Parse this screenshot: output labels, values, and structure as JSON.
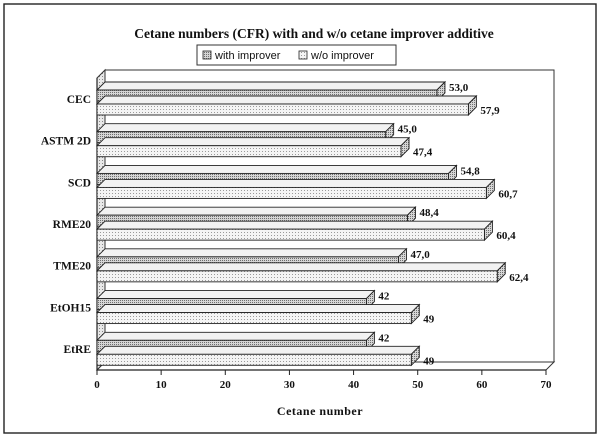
{
  "chart_data": {
    "type": "bar",
    "orientation": "horizontal",
    "title": "Cetane numbers (CFR) with and w/o cetane improver additive",
    "xlabel": "Cetane number",
    "ylabel": "",
    "xlim": [
      0,
      70
    ],
    "x_ticks": [
      "0",
      "10",
      "20",
      "30",
      "40",
      "50",
      "60",
      "70"
    ],
    "categories": [
      "CEC",
      "ASTM 2D",
      "SCD",
      "RME20",
      "TME20",
      "EtOH15",
      "EtRE"
    ],
    "series": [
      {
        "name": "with improver",
        "values": [
          53.0,
          45.0,
          54.8,
          48.4,
          47.0,
          42,
          42
        ],
        "labels": [
          "53,0",
          "45,0",
          "54,8",
          "48,4",
          "47,0",
          "42",
          "42"
        ],
        "color": "#d8d8d8"
      },
      {
        "name": "w/o improver",
        "values": [
          57.9,
          47.4,
          60.7,
          60.4,
          62.4,
          49,
          49
        ],
        "labels": [
          "57,9",
          "47,4",
          "60,7",
          "60,4",
          "62,4",
          "49",
          "49"
        ],
        "color": "#ececec"
      }
    ],
    "legend": {
      "position": "top"
    },
    "grid": false
  }
}
